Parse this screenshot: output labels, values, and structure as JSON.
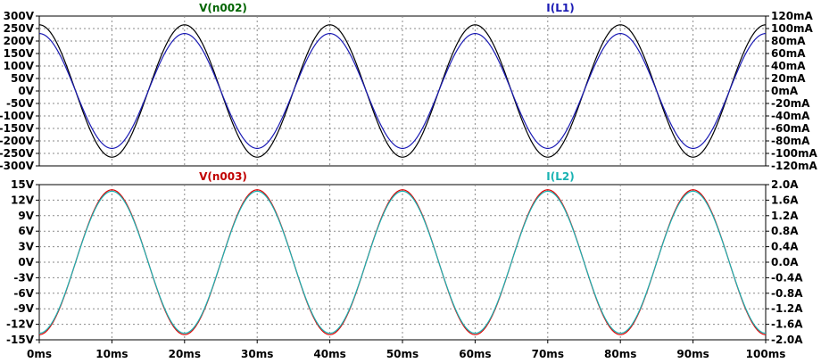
{
  "chart_data": [
    {
      "type": "line",
      "pane": "top",
      "x_range_ms": [
        0,
        100
      ],
      "left_axis": {
        "ylim": [
          -300,
          300
        ],
        "ticks": [
          "300V",
          "250V",
          "200V",
          "150V",
          "100V",
          "50V",
          "0V",
          "-50V",
          "-100V",
          "-150V",
          "-200V",
          "-250V",
          "-300V"
        ]
      },
      "right_axis": {
        "ylim": [
          -120,
          120
        ],
        "ticks": [
          "120mA",
          "100mA",
          "80mA",
          "60mA",
          "40mA",
          "20mA",
          "0mA",
          "-20mA",
          "-40mA",
          "-60mA",
          "-80mA",
          "-100mA",
          "-120mA"
        ]
      },
      "grid": true,
      "series": [
        {
          "name": "V(n002)",
          "axis": "left",
          "color": "#000000",
          "amplitude": 265,
          "frequency_hz": 50,
          "shape": "cosine",
          "label_color": "#006400"
        },
        {
          "name": "I(L1)",
          "axis": "right",
          "color": "#1a1ab4",
          "amplitude": 92,
          "frequency_hz": 50,
          "shape": "cosine",
          "label_color": "#1a1ab4"
        }
      ]
    },
    {
      "type": "line",
      "pane": "bottom",
      "x_range_ms": [
        0,
        100
      ],
      "left_axis": {
        "ylim": [
          -15,
          15
        ],
        "ticks": [
          "15V",
          "12V",
          "9V",
          "6V",
          "3V",
          "0V",
          "-3V",
          "-6V",
          "-9V",
          "-12V",
          "-15V"
        ]
      },
      "right_axis": {
        "ylim": [
          -2.0,
          2.0
        ],
        "ticks": [
          "2.0A",
          "1.6A",
          "1.2A",
          "0.8A",
          "0.4A",
          "0.0A",
          "-0.4A",
          "-0.8A",
          "-1.2A",
          "-1.6A",
          "-2.0A"
        ]
      },
      "grid": true,
      "series": [
        {
          "name": "V(n003)",
          "axis": "left",
          "color": "#e00000",
          "amplitude": 14.0,
          "frequency_hz": 50,
          "shape": "negative-cosine",
          "label_color": "#c00000"
        },
        {
          "name": "I(L2)",
          "axis": "right",
          "color": "#18b2b2",
          "amplitude": 1.83,
          "frequency_hz": 50,
          "shape": "negative-cosine",
          "label_color": "#18b2b2"
        }
      ]
    }
  ],
  "x_axis": {
    "ticks": [
      "0ms",
      "10ms",
      "20ms",
      "30ms",
      "40ms",
      "50ms",
      "60ms",
      "70ms",
      "80ms",
      "90ms",
      "100ms"
    ]
  }
}
